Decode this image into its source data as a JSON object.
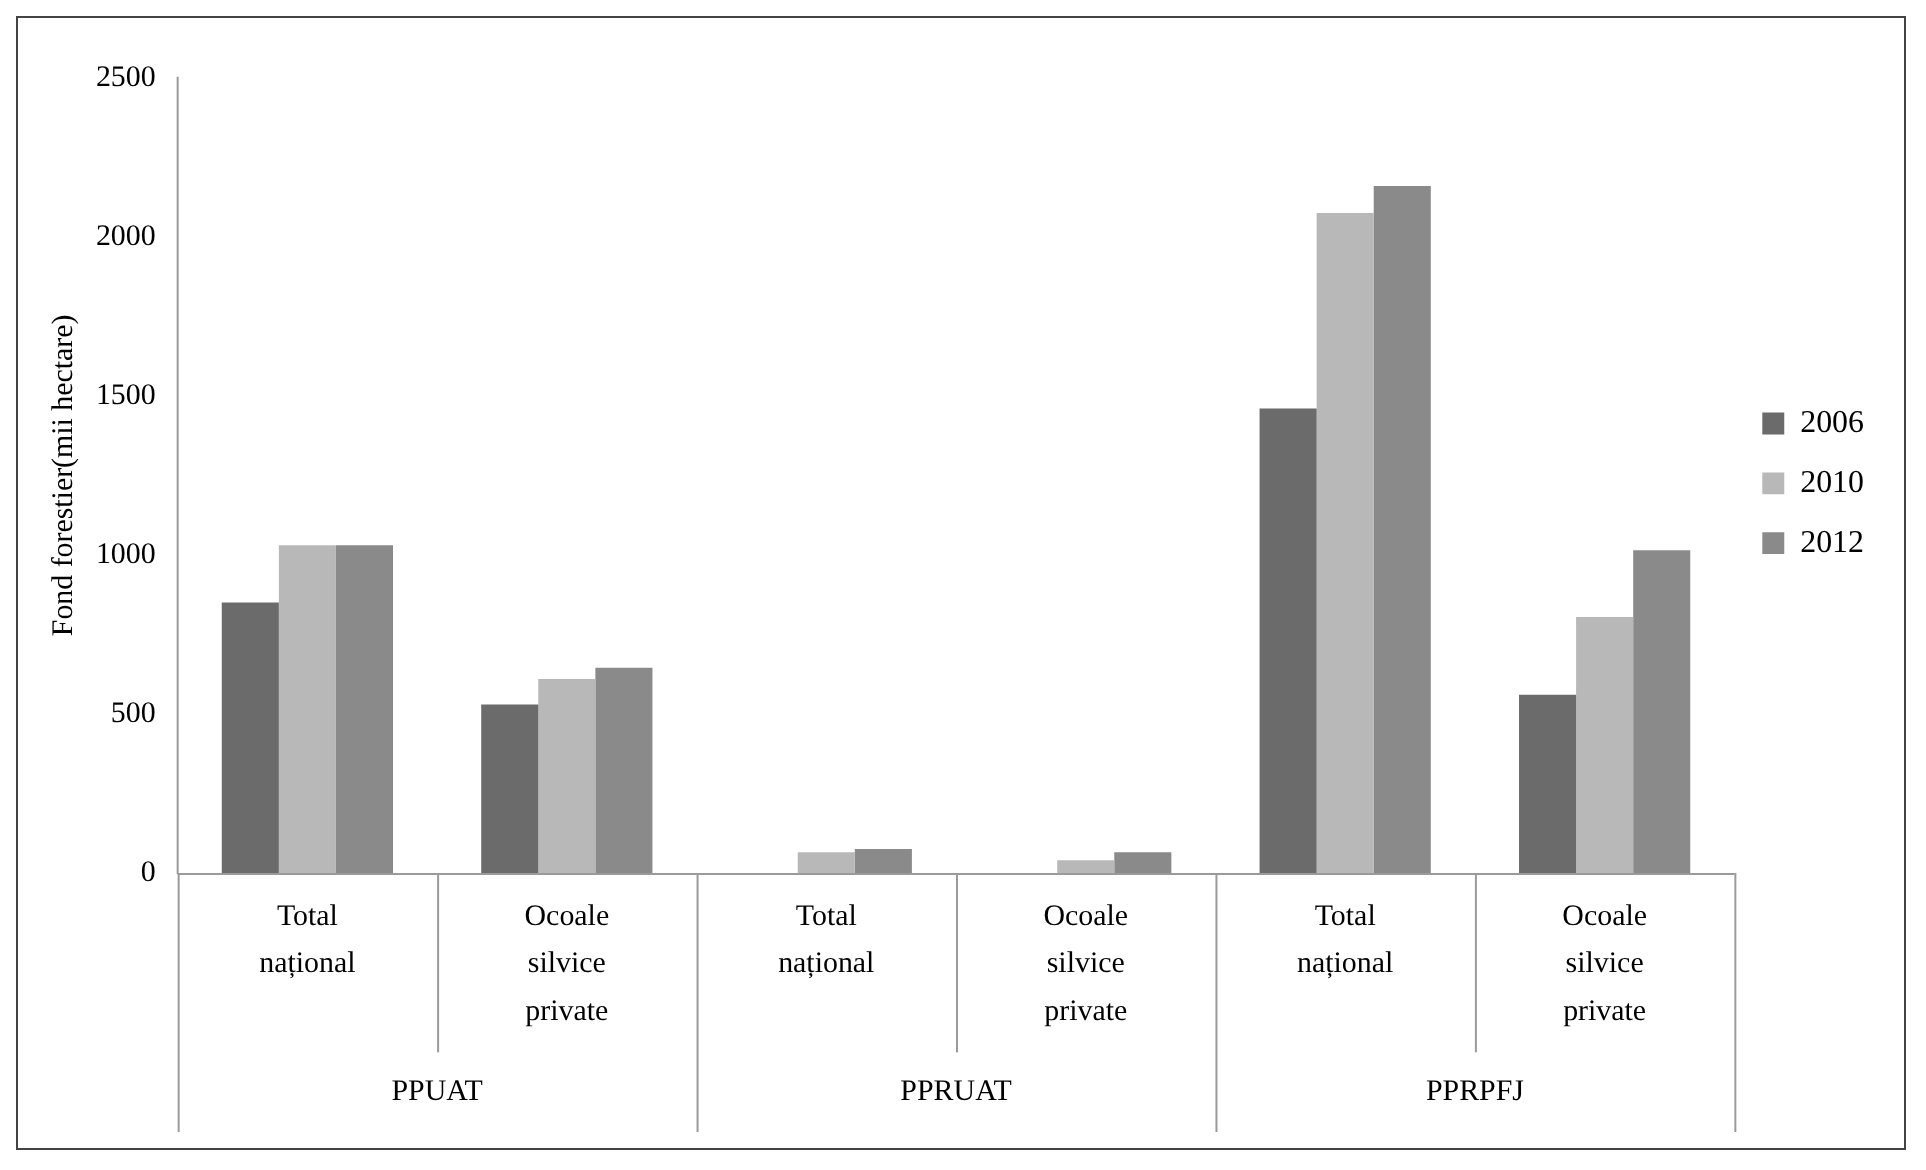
{
  "chart_data": {
    "type": "bar",
    "ylabel": "Fond forestier(mii hectare)",
    "categories": [
      "Total național",
      "Ocoale silvice private",
      "Total național",
      "Ocoale silvice private",
      "Total național",
      "Ocoale silvice private"
    ],
    "series": [
      {
        "name": "2006",
        "color": "#6b6b6b",
        "values": [
          850,
          530,
          0,
          0,
          1460,
          560
        ]
      },
      {
        "name": "2010",
        "color": "#b8b8b8",
        "values": [
          1030,
          610,
          65,
          40,
          2075,
          805
        ]
      },
      {
        "name": "2012",
        "color": "#8a8a8a",
        "values": [
          1030,
          645,
          75,
          65,
          2160,
          1015
        ]
      }
    ],
    "annotations": [
      "PPUAT",
      "PPRUAT",
      "PPRPFJ"
    ],
    "ylim": [
      0,
      2500
    ],
    "yticks": [
      0,
      500,
      1000,
      1500,
      2000,
      2500
    ],
    "legend": "right"
  }
}
